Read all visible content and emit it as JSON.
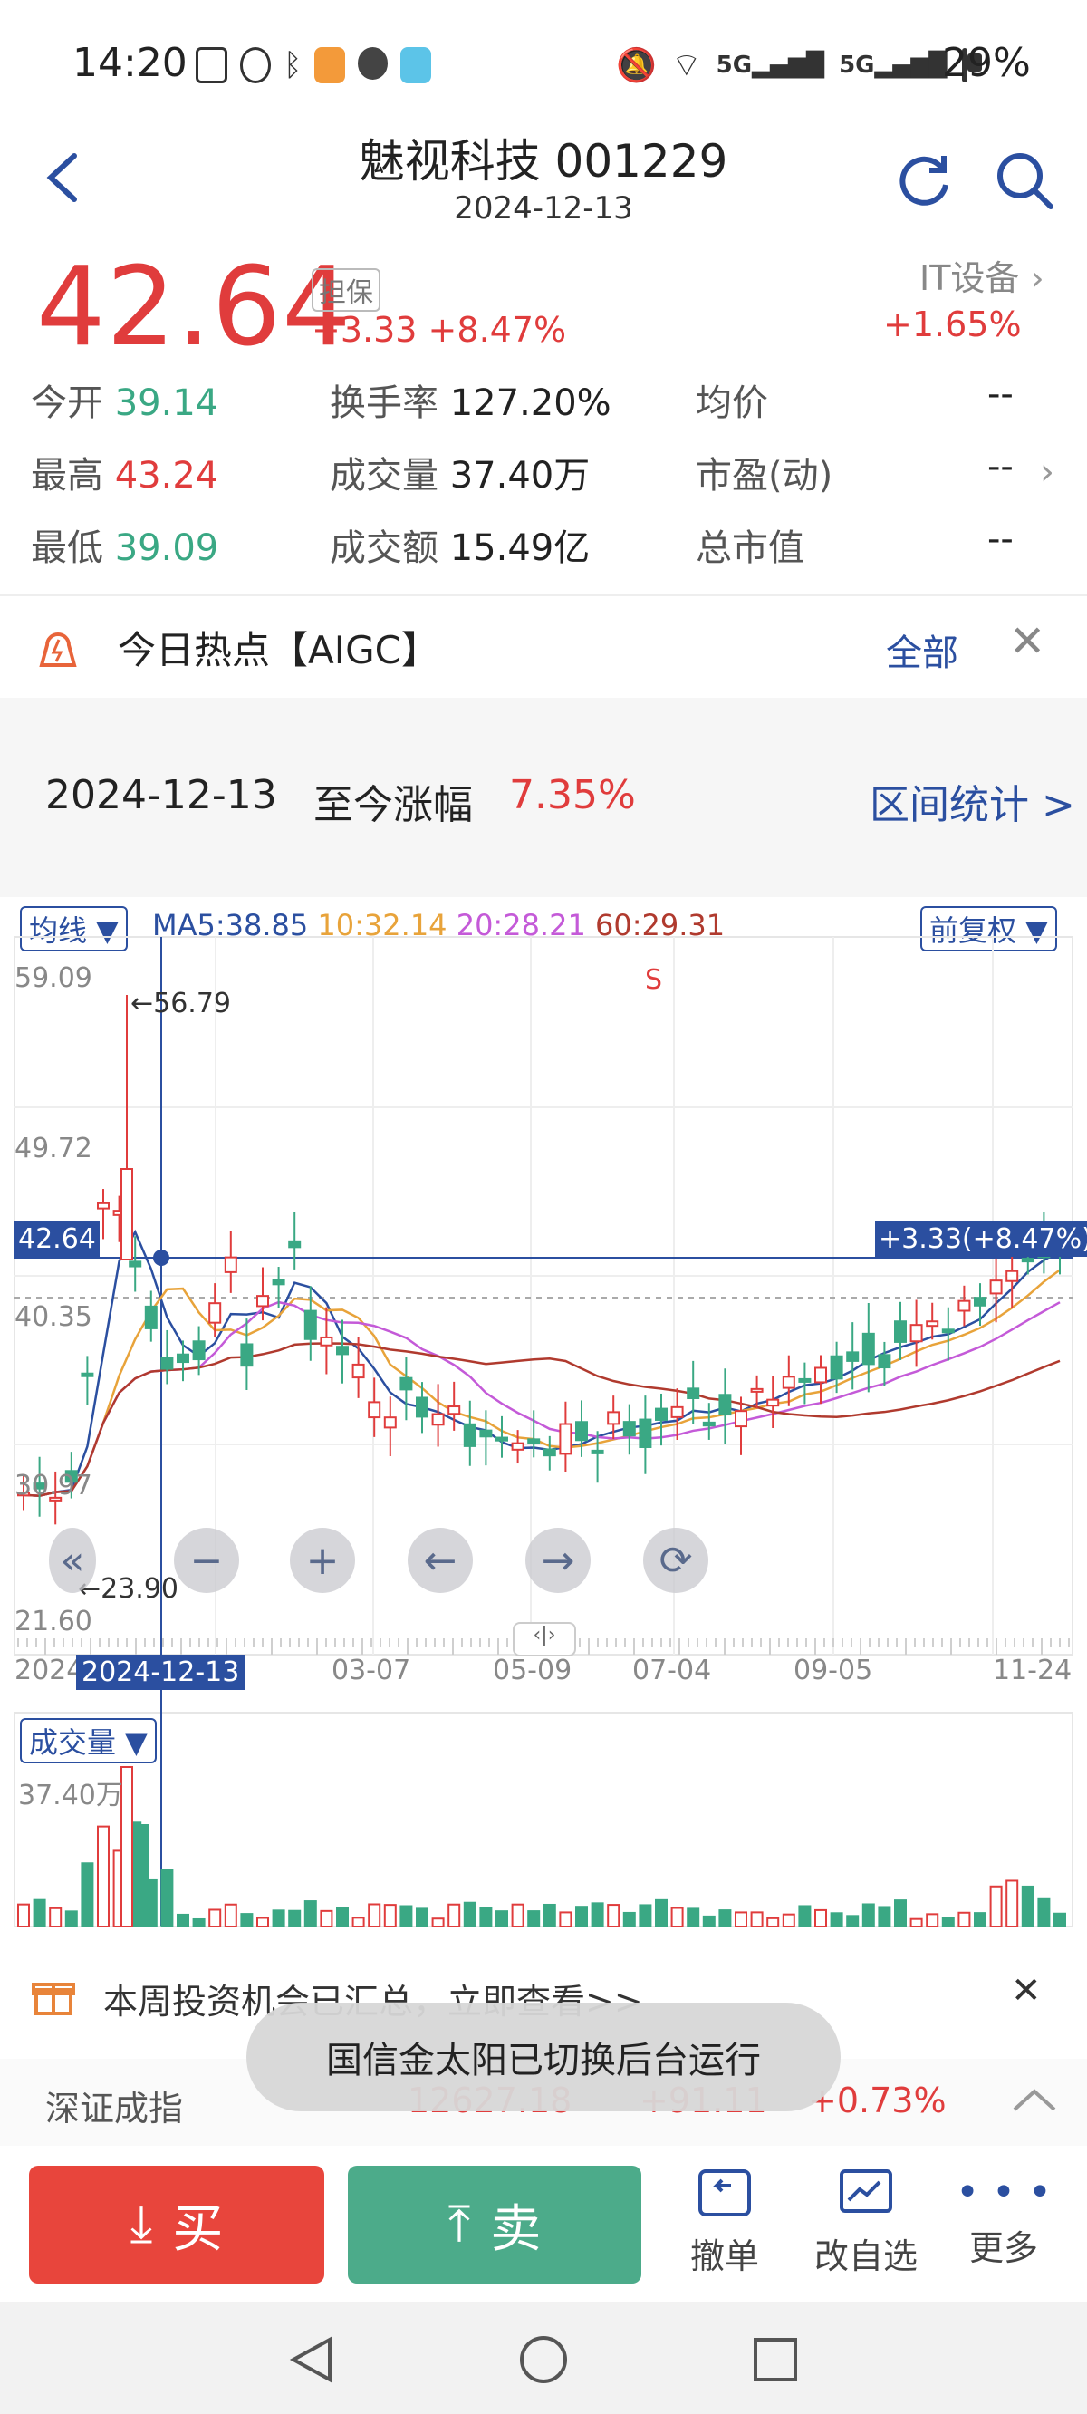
{
  "status_bar": {
    "time": "14:20",
    "battery": "29%"
  },
  "header": {
    "title": "魅视科技 001229",
    "date": "2024-12-13"
  },
  "quote": {
    "price": "42.64",
    "tag": "担保",
    "change": "+3.33",
    "change_pct": "+8.47%",
    "sector": "IT设备",
    "sector_change": "+1.65%",
    "stats": [
      {
        "label": "今开",
        "value": "39.14"
      },
      {
        "label": "换手率",
        "value": "127.20%"
      },
      {
        "label": "均价",
        "value": "--"
      },
      {
        "label": "最高",
        "value": "43.24"
      },
      {
        "label": "成交量",
        "value": "37.40万"
      },
      {
        "label": "市盈(动)",
        "value": "--"
      },
      {
        "label": "最低",
        "value": "39.09"
      },
      {
        "label": "成交额",
        "value": "15.49亿"
      },
      {
        "label": "总市值",
        "value": "--"
      }
    ]
  },
  "hot": {
    "label": "今日热点【AIGC】",
    "all": "全部"
  },
  "range": {
    "date": "2024-12-13",
    "label": "至今涨幅",
    "value": "7.35%",
    "stats_link": "区间统计 >"
  },
  "chart": {
    "ma_selector": "均线 ▼",
    "ma5": "MA5:38.85",
    "ma10": "10:32.14",
    "ma20": "20:28.21",
    "ma60": "60:29.31",
    "adjust": "前复权 ▼",
    "y_labels": [
      "59.09",
      "49.72",
      "40.35",
      "30.97",
      "21.60"
    ],
    "current_label": "42.64",
    "current_change": "+3.33(+8.47%)",
    "high_note": "←56.79",
    "low_note": "←23.90",
    "s_marker": "S",
    "x_labels": [
      "2024",
      "03-07",
      "05-09",
      "07-04",
      "09-05",
      "11-24"
    ],
    "cursor_date": "2024-12-13",
    "volume_selector": "成交量 ▼",
    "volume_max": "37.40万",
    "colors": {
      "up": "#e03c3c",
      "down": "#3aa884",
      "ma5": "#2b4fa0",
      "ma10": "#e8a33a",
      "ma20": "#c45ad8",
      "ma60": "#b03a2e"
    }
  },
  "promo": {
    "text": "本周投资机会已汇总，立即查看>>"
  },
  "toast": {
    "text": "国信金太阳已切换后台运行"
  },
  "index_row": {
    "name": "深证成指",
    "value": "12627.18",
    "change": "+91.11",
    "pct": "+0.73%"
  },
  "trade": {
    "buy": "买",
    "sell": "卖",
    "tools": [
      "撤单",
      "改自选",
      "更多"
    ]
  }
}
